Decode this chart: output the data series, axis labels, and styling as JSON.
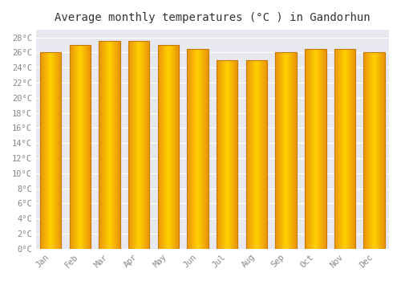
{
  "title": "Average monthly temperatures (°C ) in Gandorhun",
  "months": [
    "Jan",
    "Feb",
    "Mar",
    "Apr",
    "May",
    "Jun",
    "Jul",
    "Aug",
    "Sep",
    "Oct",
    "Nov",
    "Dec"
  ],
  "values": [
    26.0,
    27.0,
    27.5,
    27.5,
    27.0,
    26.5,
    25.0,
    25.0,
    26.0,
    26.5,
    26.5,
    26.0
  ],
  "bar_color_center": "#FFD000",
  "bar_color_edge": "#E8920A",
  "bar_edge_color": "#C87800",
  "ylim": [
    0,
    29
  ],
  "ytick_step": 2,
  "plot_bg_color": "#E8E8F0",
  "fig_bg_color": "#FFFFFF",
  "grid_color": "#FFFFFF",
  "title_fontsize": 10,
  "tick_fontsize": 7.5,
  "tick_color": "#888888",
  "title_color": "#333333",
  "title_font": "monospace"
}
